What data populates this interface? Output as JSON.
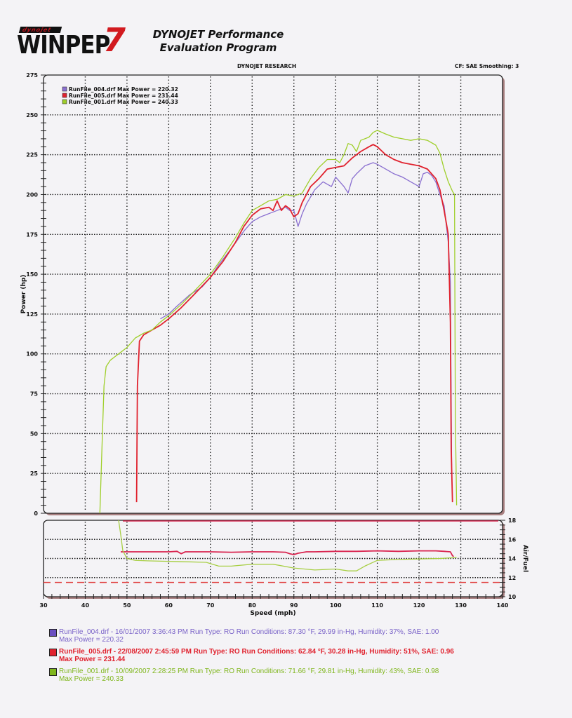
{
  "header": {
    "logo_small": "dynojet",
    "logo_big": "WINPEP",
    "logo_number": "7",
    "title_line1": "DYNOJET Performance",
    "title_line2": "Evaluation Program",
    "research_label": "DYNOJET RESEARCH",
    "cf_label": "CF: SAE  Smoothing: 3"
  },
  "legend": [
    {
      "label": "RunFile_004.drf Max Power = 220.32",
      "color": "#8a6fd0"
    },
    {
      "label": "RunFile_005.drf Max Power = 231.44",
      "color": "#e0222e"
    },
    {
      "label": "RunFile_001.drf Max Power = 240.33",
      "color": "#9fcf2a"
    }
  ],
  "runs": [
    {
      "line": "RunFile_004.drf - 16/01/2007 3:36:43 PM  Run Type: RO  Run Conditions: 87.30 °F, 29.99 in-Hg,  Humidity:  37%, SAE: 1.00",
      "max": "Max Power = 220.32",
      "color": "#7a63c8",
      "swatch": "#6a4fc0",
      "bold": false
    },
    {
      "line": "RunFile_005.drf - 22/08/2007 2:45:59 PM  Run Type: RO  Run Conditions: 62.84 °F, 30.28 in-Hg,  Humidity:  51%, SAE: 0.96",
      "max": "Max Power = 231.44",
      "color": "#e0222e",
      "swatch": "#e0222e",
      "bold": true
    },
    {
      "line": "RunFile_001.drf - 10/09/2007 2:28:25 PM  Run Type: RO  Run Conditions: 71.66 °F, 29.81 in-Hg,  Humidity:  43%, SAE: 0.98",
      "max": "Max Power = 240.33",
      "color": "#7fb61c",
      "swatch": "#7fb61c",
      "bold": false
    }
  ],
  "chart_data": [
    {
      "type": "line",
      "title": "DYNOJET RESEARCH",
      "xlabel": "Speed (mph)",
      "ylabel": "Power (hp)",
      "xlim": [
        30,
        140
      ],
      "ylim": [
        0,
        275
      ],
      "xticks": [
        30,
        40,
        50,
        60,
        70,
        80,
        90,
        100,
        110,
        120,
        130,
        140
      ],
      "yticks": [
        0,
        25,
        50,
        75,
        100,
        125,
        150,
        175,
        200,
        225,
        250,
        275
      ],
      "grid": true,
      "legend_position": "upper-left",
      "series": [
        {
          "name": "RunFile_004.drf",
          "color": "#8a6fd0",
          "max_power": 220.32,
          "x": [
            58,
            60,
            62,
            65,
            68,
            70,
            72,
            75,
            78,
            80,
            82,
            84,
            86,
            88,
            89,
            90,
            91,
            92,
            93,
            95,
            97,
            99,
            100,
            102,
            103,
            104,
            105,
            107,
            109,
            110,
            112,
            114,
            116,
            118,
            120,
            121,
            122,
            123,
            124,
            125,
            126,
            127,
            127.5,
            127.8
          ],
          "y": [
            122,
            125,
            130,
            137,
            142,
            148,
            156,
            166,
            177,
            183,
            186,
            188,
            190,
            192,
            190,
            190,
            180,
            188,
            194,
            203,
            208,
            205,
            211,
            205,
            201,
            210,
            213,
            218,
            220,
            219,
            216,
            213,
            211,
            208,
            205,
            213,
            214,
            212,
            208,
            200,
            193,
            170,
            145,
            30
          ]
        },
        {
          "name": "RunFile_005.drf",
          "color": "#e0222e",
          "max_power": 231.44,
          "x": [
            52.3,
            52.5,
            53,
            54,
            56,
            58,
            60,
            63,
            66,
            70,
            73,
            76,
            78,
            80,
            82,
            84,
            85,
            86,
            87,
            88,
            89,
            90,
            91,
            92,
            94,
            96,
            98,
            100,
            102,
            104,
            106,
            108,
            109,
            110,
            112,
            114,
            116,
            118,
            120,
            122,
            124,
            125,
            126,
            127,
            127.5,
            127.7,
            128
          ],
          "y": [
            7,
            80,
            108,
            112,
            115,
            118,
            122,
            129,
            137,
            148,
            158,
            170,
            180,
            187,
            191,
            192,
            190,
            196,
            190,
            193,
            191,
            186,
            188,
            195,
            205,
            210,
            216,
            217,
            218,
            223,
            227,
            230,
            231.4,
            230,
            225,
            222,
            220,
            219,
            218,
            216,
            210,
            203,
            190,
            175,
            120,
            40,
            7
          ]
        },
        {
          "name": "RunFile_001.drf",
          "color": "#9fcf2a",
          "max_power": 240.33,
          "x": [
            43.5,
            44,
            44.5,
            45,
            46,
            48,
            50,
            52,
            54,
            56,
            58,
            60,
            63,
            66,
            70,
            73,
            76,
            78,
            80,
            82,
            84,
            86,
            88,
            90,
            92,
            94,
            96,
            98,
            100,
            101,
            102,
            103,
            104,
            105,
            106,
            108,
            109,
            110,
            112,
            114,
            116,
            118,
            120,
            122,
            124,
            125,
            126,
            127,
            128,
            128.5,
            128.7,
            129
          ],
          "y": [
            0,
            40,
            80,
            92,
            96,
            100,
            104,
            110,
            113,
            115,
            120,
            124,
            131,
            139,
            150,
            161,
            173,
            182,
            190,
            193,
            196,
            197,
            200,
            199,
            201,
            210,
            217,
            222,
            222,
            220,
            225,
            232,
            231,
            227,
            234,
            236,
            239,
            240.3,
            238,
            236,
            235,
            234,
            235,
            234,
            231,
            226,
            216,
            208,
            202,
            200,
            60,
            5
          ]
        }
      ]
    },
    {
      "type": "line",
      "title": "",
      "xlabel": "Speed (mph)",
      "ylabel": "Air/Fuel",
      "xlim": [
        30,
        140
      ],
      "ylim": [
        10,
        18
      ],
      "xticks": [
        30,
        40,
        50,
        60,
        70,
        80,
        90,
        100,
        110,
        120,
        130,
        140
      ],
      "yticks": [
        10,
        12,
        14,
        16,
        18
      ],
      "grid": true,
      "series": [
        {
          "name": "RunFile_005.drf",
          "color": "#d9244f",
          "x": [
            48.5,
            50,
            55,
            60,
            62,
            63,
            64,
            66,
            70,
            75,
            80,
            85,
            88,
            89,
            90,
            91,
            93,
            95,
            100,
            105,
            110,
            115,
            120,
            124,
            126,
            127.5,
            128,
            128.3
          ],
          "y": [
            14.7,
            14.7,
            14.7,
            14.7,
            14.75,
            14.5,
            14.7,
            14.7,
            14.7,
            14.65,
            14.7,
            14.7,
            14.65,
            14.5,
            14.4,
            14.55,
            14.7,
            14.7,
            14.75,
            14.75,
            14.8,
            14.75,
            14.8,
            14.8,
            14.75,
            14.7,
            14.3,
            14.2
          ]
        },
        {
          "name": "RunFile_001.drf",
          "color": "#a8cf45",
          "x": [
            48,
            48.5,
            49,
            50,
            52,
            55,
            60,
            65,
            69,
            72,
            75,
            80,
            85,
            90,
            95,
            100,
            103,
            105,
            107,
            110,
            115,
            120,
            125,
            129
          ],
          "y": [
            18,
            16.5,
            14.8,
            14.0,
            13.8,
            13.75,
            13.7,
            13.65,
            13.6,
            13.2,
            13.2,
            13.4,
            13.4,
            13.0,
            12.8,
            12.9,
            12.7,
            12.7,
            13.2,
            13.8,
            13.9,
            13.95,
            14.0,
            14.1
          ]
        },
        {
          "name": "Target AFR reference (dashed)",
          "color": "#e03a3a",
          "dashed": true,
          "x": [
            30,
            140
          ],
          "y": [
            11.5,
            11.5
          ]
        }
      ]
    }
  ]
}
